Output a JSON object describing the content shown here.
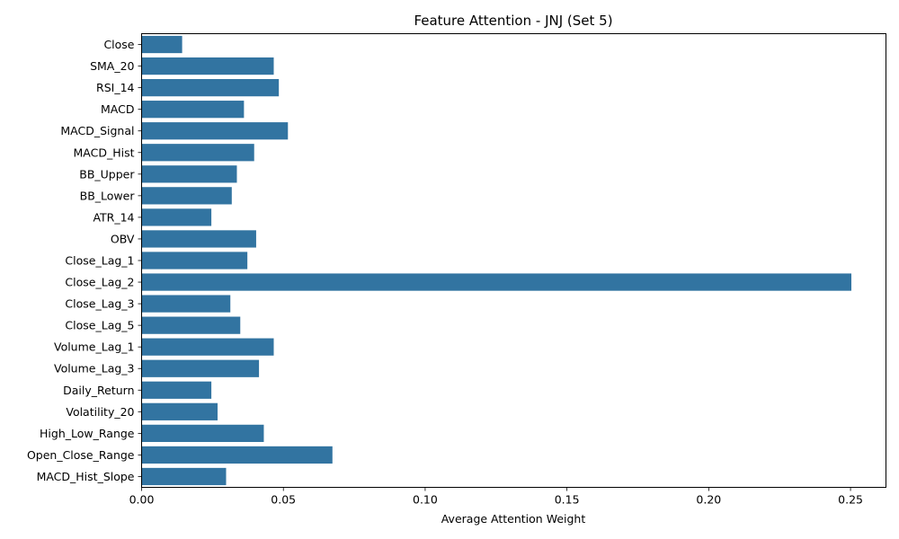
{
  "chart_data": {
    "type": "bar",
    "orientation": "horizontal",
    "title": "Feature Attention - JNJ (Set 5)",
    "xlabel": "Average Attention Weight",
    "ylabel": "",
    "xlim": [
      0,
      0.2625
    ],
    "xticks": [
      0.0,
      0.05,
      0.1,
      0.15,
      0.2,
      0.25
    ],
    "xtick_labels": [
      "0.00",
      "0.05",
      "0.10",
      "0.15",
      "0.20",
      "0.25"
    ],
    "grid": false,
    "bar_color": "#3274a1",
    "categories": [
      "Close",
      "SMA_20",
      "RSI_14",
      "MACD",
      "MACD_Signal",
      "MACD_Hist",
      "BB_Upper",
      "BB_Lower",
      "ATR_14",
      "OBV",
      "Close_Lag_1",
      "Close_Lag_2",
      "Close_Lag_3",
      "Close_Lag_5",
      "Volume_Lag_1",
      "Volume_Lag_3",
      "Daily_Return",
      "Volatility_20",
      "High_Low_Range",
      "Open_Close_Range",
      "MACD_Hist_Slope"
    ],
    "values": [
      0.0143,
      0.0466,
      0.0484,
      0.0361,
      0.0516,
      0.0397,
      0.0336,
      0.0318,
      0.0246,
      0.0404,
      0.0373,
      0.2503,
      0.0313,
      0.0348,
      0.0466,
      0.0414,
      0.0246,
      0.0268,
      0.0431,
      0.0673,
      0.0298
    ]
  }
}
